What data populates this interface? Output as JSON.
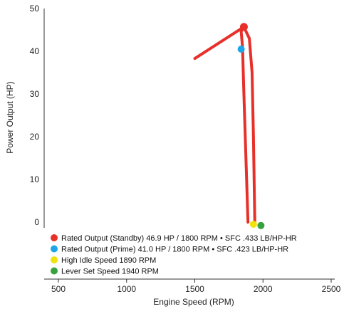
{
  "chart_data": {
    "type": "line",
    "xlabel": "Engine Speed (RPM)",
    "ylabel": "Power Output (HP)",
    "xlim": [
      500,
      2500
    ],
    "ylim": [
      0,
      50
    ],
    "xticks": [
      500,
      1000,
      1500,
      2000,
      2500
    ],
    "yticks": [
      0,
      10,
      20,
      30,
      40,
      50
    ],
    "grid": false,
    "legend_position": "bottom-left",
    "curve_color": "#e8302a",
    "series": [
      {
        "color": "#e8302a",
        "points": [
          [
            1500,
            38.3
          ],
          [
            1860,
            45.7
          ],
          [
            1840,
            44.6
          ],
          [
            1850,
            41.0
          ],
          [
            1860,
            30.0
          ],
          [
            1890,
            0.0
          ]
        ]
      },
      {
        "color": "#e8302a",
        "points": [
          [
            1860,
            45.7
          ],
          [
            1900,
            43.0
          ],
          [
            1920,
            35.0
          ],
          [
            1930,
            20.0
          ],
          [
            1940,
            0.0
          ]
        ]
      }
    ],
    "markers": [
      {
        "x": 1860,
        "y": 45.7,
        "color": "#e8302a",
        "label": "Rated Output (Standby) 46.9 HP / 1800 RPM • SFC .433 LB/HP-HR"
      },
      {
        "x": 1840,
        "y": 40.5,
        "color": "#1ea5e8",
        "label": "Rated Output (Prime) 41.0 HP / 1800 RPM • SFC .423 LB/HP-HR"
      },
      {
        "x": 1930,
        "y": -0.5,
        "color": "#f2e20c",
        "label": "High Idle Speed 1890 RPM"
      },
      {
        "x": 1985,
        "y": -0.8,
        "color": "#37a33f",
        "label": "Lever Set Speed 1940 RPM"
      }
    ]
  }
}
